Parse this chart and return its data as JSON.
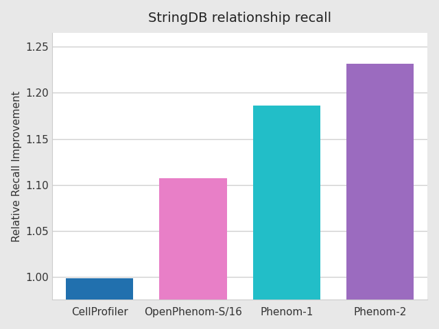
{
  "title": "StringDB relationship recall",
  "categories": [
    "CellProfiler",
    "OpenPhenom-S/16",
    "Phenom-1",
    "Phenom-2"
  ],
  "values": [
    0.9985,
    1.107,
    1.186,
    1.232
  ],
  "bar_colors": [
    "#2170ae",
    "#e87fc7",
    "#22bec8",
    "#9b6bbf"
  ],
  "ylabel": "Relative Recall Improvement",
  "ylim": [
    0.975,
    1.265
  ],
  "yticks": [
    1.0,
    1.05,
    1.1,
    1.15,
    1.2,
    1.25
  ],
  "plot_background": "#ffffff",
  "figure_background": "#e8e8e8",
  "grid_color": "#d0d0d0",
  "title_fontsize": 14,
  "axis_fontsize": 11,
  "tick_fontsize": 11,
  "bar_width": 0.72
}
